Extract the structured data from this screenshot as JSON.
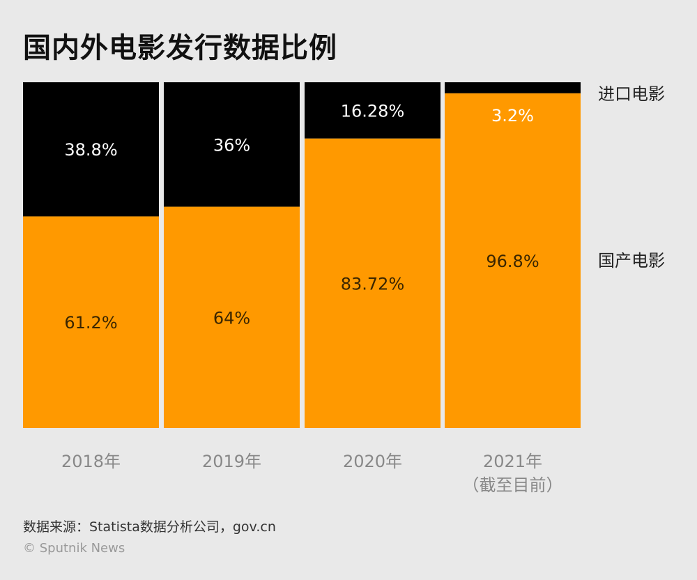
{
  "chart_data": {
    "type": "bar",
    "stacked": true,
    "normalized": true,
    "title": "国内外电影发行数据比例",
    "categories": [
      "2018年",
      "2019年",
      "2020年",
      "2021年\n（截至目前）"
    ],
    "series": [
      {
        "name": "国产电影",
        "values": [
          61.2,
          64,
          83.72,
          96.8
        ],
        "labels": [
          "61.2%",
          "64%",
          "83.72%",
          "96.8%"
        ],
        "color": "#ff9900"
      },
      {
        "name": "进口电影",
        "values": [
          38.8,
          36,
          16.28,
          3.2
        ],
        "labels": [
          "38.8%",
          "36%",
          "16.28%",
          "3.2%"
        ],
        "color": "#000000"
      }
    ],
    "ylim": [
      0,
      100
    ],
    "grid": false,
    "legend": "right"
  },
  "footer": {
    "source": "数据来源：Statista数据分析公司，gov.cn",
    "credit": "© Sputnik News"
  },
  "colors": {
    "background": "#e9e9e9",
    "axis_label": "#888888"
  }
}
